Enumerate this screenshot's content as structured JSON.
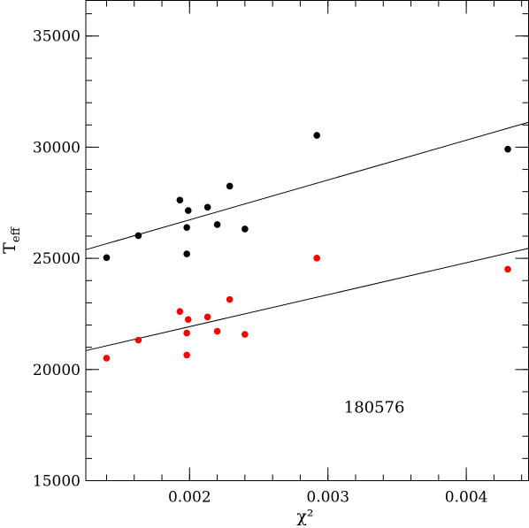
{
  "chart_data": {
    "type": "scatter",
    "xlabel": "χ²",
    "ylabel": "T_eff",
    "ylabel_main": "T",
    "ylabel_sub": "eff",
    "xlim": [
      0.00125,
      0.00445
    ],
    "ylim": [
      15000,
      36600
    ],
    "x_ticks": [
      {
        "value": 0.002,
        "label": "0.002"
      },
      {
        "value": 0.003,
        "label": "0.003"
      },
      {
        "value": 0.004,
        "label": "0.004"
      }
    ],
    "y_ticks": [
      {
        "value": 15000,
        "label": "15000"
      },
      {
        "value": 20000,
        "label": "20000"
      },
      {
        "value": 25000,
        "label": "25000"
      },
      {
        "value": 30000,
        "label": "30000"
      },
      {
        "value": 35000,
        "label": "35000"
      }
    ],
    "x_minor_step": 0.0002,
    "y_minor_step": 1000,
    "annotation": "180576",
    "annotation_position": {
      "x": 0.00244,
      "y": 18060
    },
    "series": [
      {
        "color": "#000000",
        "points": [
          {
            "x": 0.0014,
            "y": 25030
          },
          {
            "x": 0.00163,
            "y": 26020
          },
          {
            "x": 0.00193,
            "y": 27620
          },
          {
            "x": 0.00199,
            "y": 27150
          },
          {
            "x": 0.00198,
            "y": 26390
          },
          {
            "x": 0.00198,
            "y": 25200
          },
          {
            "x": 0.00213,
            "y": 27300
          },
          {
            "x": 0.0022,
            "y": 26520
          },
          {
            "x": 0.00229,
            "y": 28250
          },
          {
            "x": 0.0024,
            "y": 26320
          },
          {
            "x": 0.00292,
            "y": 30530
          },
          {
            "x": 0.0043,
            "y": 29910
          }
        ],
        "fit_line": {
          "x": [
            0.00125,
            0.00445
          ],
          "y": [
            25390,
            31120
          ]
        }
      },
      {
        "color": "#ff0000",
        "points": [
          {
            "x": 0.0014,
            "y": 20510
          },
          {
            "x": 0.00163,
            "y": 21320
          },
          {
            "x": 0.00193,
            "y": 22610
          },
          {
            "x": 0.00199,
            "y": 22250
          },
          {
            "x": 0.00198,
            "y": 21640
          },
          {
            "x": 0.00198,
            "y": 20650
          },
          {
            "x": 0.00213,
            "y": 22360
          },
          {
            "x": 0.0022,
            "y": 21720
          },
          {
            "x": 0.00229,
            "y": 23150
          },
          {
            "x": 0.0024,
            "y": 21580
          },
          {
            "x": 0.00292,
            "y": 25010
          },
          {
            "x": 0.0043,
            "y": 24510
          }
        ],
        "fit_line": {
          "x": [
            0.00125,
            0.00445
          ],
          "y": [
            20850,
            25450
          ]
        }
      }
    ]
  }
}
